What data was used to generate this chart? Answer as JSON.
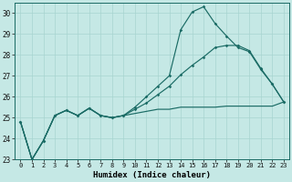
{
  "xlabel": "Humidex (Indice chaleur)",
  "background_color": "#c5e8e5",
  "grid_color": "#a8d4d0",
  "line_color": "#1a6b65",
  "xlim": [
    0,
    23
  ],
  "ylim": [
    23,
    30.5
  ],
  "yticks": [
    23,
    24,
    25,
    26,
    27,
    28,
    29,
    30
  ],
  "xticks": [
    0,
    1,
    2,
    3,
    4,
    5,
    6,
    7,
    8,
    9,
    10,
    11,
    12,
    13,
    14,
    15,
    16,
    17,
    18,
    19,
    20,
    21,
    22,
    23
  ],
  "series": [
    [
      24.8,
      23.0,
      23.9,
      25.1,
      25.35,
      25.1,
      25.45,
      25.1,
      25.0,
      25.1,
      25.5,
      26.0,
      26.5,
      27.0,
      29.2,
      30.05,
      30.3,
      29.5,
      28.9,
      28.35,
      28.15,
      27.3,
      26.6,
      25.75
    ],
    [
      24.8,
      23.0,
      23.9,
      25.1,
      25.35,
      25.1,
      25.45,
      25.1,
      25.0,
      25.1,
      25.4,
      25.7,
      26.1,
      26.5,
      27.05,
      27.5,
      27.9,
      28.35,
      28.45,
      28.45,
      28.2,
      27.35,
      26.6,
      25.75
    ],
    [
      24.8,
      23.0,
      23.9,
      25.1,
      25.35,
      25.1,
      25.45,
      25.1,
      25.0,
      25.1,
      25.2,
      25.3,
      25.4,
      25.4,
      25.5,
      25.5,
      25.5,
      25.5,
      25.55,
      25.55,
      25.55,
      25.55,
      25.55,
      25.75
    ]
  ]
}
